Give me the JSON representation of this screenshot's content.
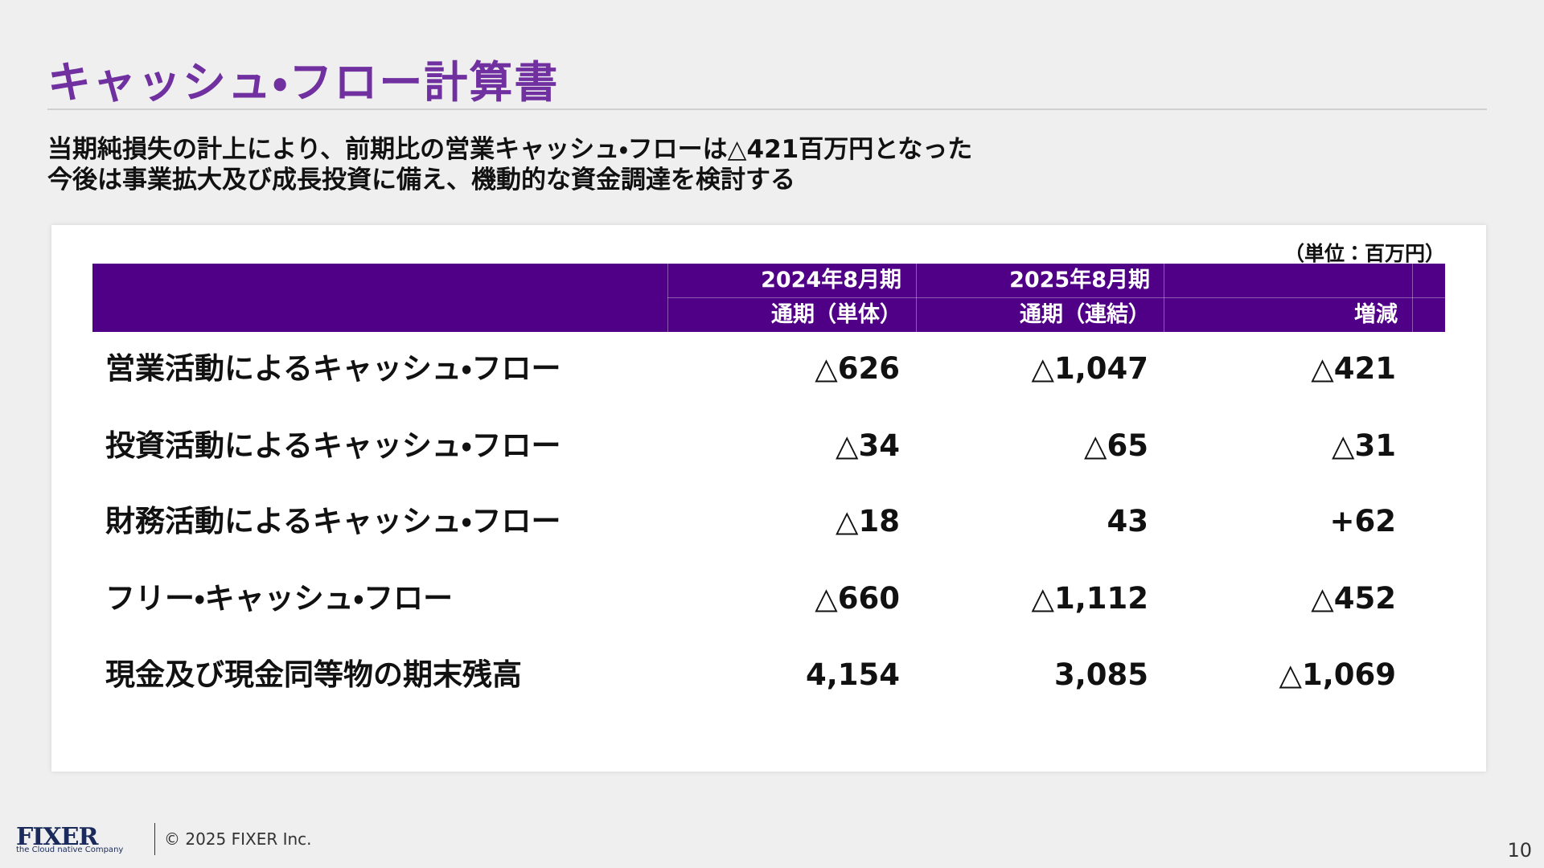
{
  "header": {
    "title": "キャッシュ・フロー計算書"
  },
  "summary": [
    "当期純損失の計上により、前期比の営業キャッシュ・フローは△421百万円となった",
    "今後は事業拡大及び成長投資に備え、機動的な資金調達を検討する"
  ],
  "table": {
    "unit": "（単位：百万円）",
    "columns": [
      [
        "2024年8月期",
        "通期（単体）"
      ],
      [
        "2025年8月期",
        "通期（連結）"
      ],
      [
        "増減"
      ]
    ],
    "rows": [
      [
        "営業活動によるキャッシュ・フロー",
        "△626",
        "△1,047",
        "△421"
      ],
      [
        "投資活動によるキャッシュ・フロー",
        "△34",
        "△65",
        "△31"
      ],
      [
        "財務活動によるキャッシュ・フロー",
        "△18",
        "43",
        "+62"
      ],
      [
        "フリー・キャッシュ・フロー",
        "△660",
        "△1,112",
        "△452"
      ],
      [
        "現金及び現金同等物の期末残高",
        "4,154",
        "3,085",
        "△1,069"
      ]
    ]
  },
  "footer": {
    "logo": "FIXER",
    "tagline": "the Cloud native Company",
    "copyright": "© 2025 FIXER Inc.",
    "page": "10"
  }
}
